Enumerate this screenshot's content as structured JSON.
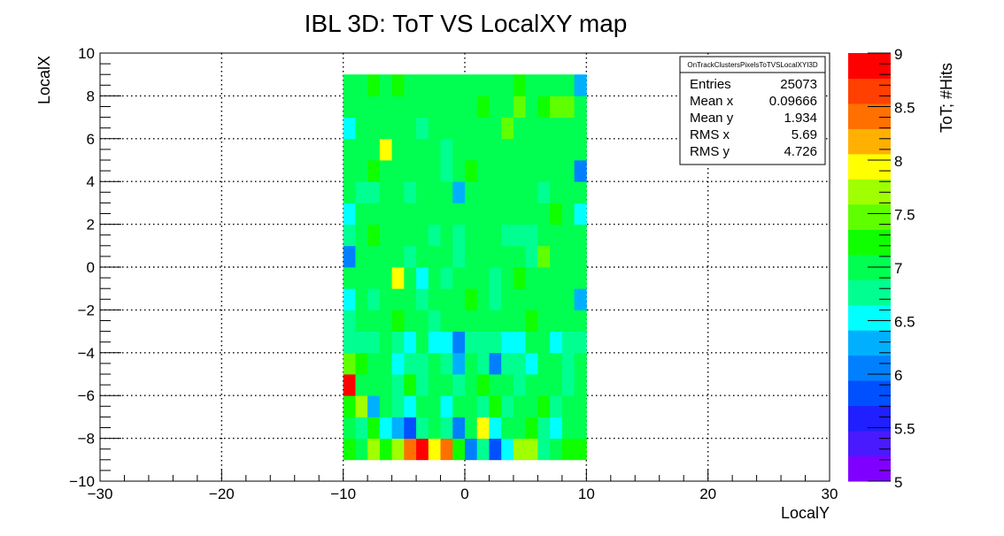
{
  "chart_data": {
    "type": "heatmap",
    "title": "IBL 3D: ToT VS LocalXY map",
    "xlabel": "LocalY",
    "ylabel": "LocalX",
    "xlim": [
      -30,
      30
    ],
    "ylim": [
      -10,
      10
    ],
    "x_ticks": [
      "−30",
      "−20",
      "−10",
      "0",
      "10",
      "20",
      "30"
    ],
    "y_ticks": [
      "−10",
      "−8",
      "−6",
      "−4",
      "−2",
      "0",
      "2",
      "4",
      "6",
      "8",
      "10"
    ],
    "grid": true,
    "x_bin_edges_start": -10,
    "x_bin_width": 1,
    "y_bin_edges_start": -9,
    "y_bin_width": 1,
    "z_range": [
      5,
      9
    ],
    "z_label": "ToT; #Hits",
    "z_ticks": [
      "5",
      "5.5",
      "6",
      "6.5",
      "7",
      "7.5",
      "8",
      "8.5",
      "9"
    ],
    "palette": [
      "#7f00ff",
      "#4a1aff",
      "#1f1fff",
      "#0050ff",
      "#0080ff",
      "#00b0ff",
      "#00ffff",
      "#00ff90",
      "#00ff50",
      "#10ff00",
      "#60ff00",
      "#a0ff00",
      "#ffff00",
      "#ffb000",
      "#ff7000",
      "#ff4000",
      "#ff0000"
    ],
    "values": [
      [
        7.3,
        7.0,
        7.6,
        7.3,
        7.8,
        8.3,
        8.8,
        8.0,
        8.5,
        7.2,
        6.1,
        6.8,
        5.9,
        6.5,
        7.6,
        7.6,
        6.7,
        7.0,
        7.2,
        7.3
      ],
      [
        7.0,
        6.8,
        7.2,
        6.6,
        6.3,
        5.9,
        6.8,
        7.0,
        6.7,
        6.1,
        6.9,
        8.0,
        6.6,
        6.9,
        7.0,
        7.2,
        6.7,
        6.6,
        6.9,
        7.1
      ],
      [
        7.3,
        7.6,
        6.2,
        7.1,
        6.8,
        6.5,
        6.9,
        7.0,
        6.6,
        7.0,
        6.9,
        6.8,
        7.2,
        6.7,
        7.0,
        7.1,
        7.3,
        6.8,
        7.0,
        7.0
      ],
      [
        8.9,
        7.1,
        6.9,
        7.0,
        6.7,
        7.2,
        6.8,
        6.9,
        7.0,
        6.8,
        7.0,
        7.3,
        6.9,
        7.0,
        6.8,
        7.1,
        6.9,
        7.0,
        6.8,
        6.9
      ],
      [
        7.4,
        7.2,
        7.0,
        6.9,
        6.6,
        6.7,
        6.8,
        6.9,
        6.7,
        6.3,
        6.9,
        6.8,
        6.0,
        6.7,
        6.8,
        6.5,
        6.9,
        7.0,
        6.8,
        6.9
      ],
      [
        6.7,
        6.8,
        6.7,
        6.9,
        6.7,
        6.6,
        6.9,
        6.5,
        6.5,
        6.1,
        6.7,
        6.8,
        6.7,
        6.6,
        6.6,
        6.9,
        7.0,
        6.6,
        6.7,
        6.8
      ],
      [
        6.8,
        7.0,
        6.9,
        7.0,
        7.2,
        7.0,
        7.1,
        6.8,
        6.9,
        7.0,
        7.1,
        7.0,
        6.9,
        7.0,
        7.1,
        7.2,
        6.9,
        7.0,
        7.0,
        6.9
      ],
      [
        6.6,
        7.0,
        6.8,
        7.0,
        6.9,
        7.1,
        6.8,
        6.9,
        7.0,
        6.9,
        7.2,
        7.0,
        6.8,
        7.0,
        6.9,
        7.0,
        7.1,
        6.9,
        7.0,
        6.2
      ],
      [
        6.9,
        7.0,
        7.1,
        7.0,
        8.0,
        6.9,
        6.6,
        7.0,
        6.8,
        6.9,
        7.0,
        7.1,
        6.8,
        6.9,
        7.2,
        7.0,
        7.1,
        6.9,
        7.0,
        7.0
      ],
      [
        6.1,
        7.0,
        6.9,
        7.1,
        7.0,
        6.8,
        6.9,
        7.0,
        6.9,
        6.8,
        6.9,
        7.0,
        7.1,
        6.9,
        7.0,
        6.8,
        7.4,
        6.9,
        7.0,
        7.0
      ],
      [
        6.7,
        7.0,
        7.2,
        7.0,
        7.1,
        6.9,
        7.0,
        6.8,
        6.9,
        6.8,
        7.0,
        7.1,
        6.9,
        6.8,
        6.7,
        6.8,
        7.0,
        6.9,
        7.1,
        7.0
      ],
      [
        6.6,
        7.0,
        6.9,
        7.1,
        7.0,
        6.9,
        7.0,
        7.1,
        6.9,
        7.0,
        7.1,
        7.0,
        6.9,
        7.0,
        7.1,
        6.9,
        7.0,
        7.2,
        7.0,
        6.5
      ],
      [
        7.0,
        6.8,
        6.7,
        6.9,
        7.0,
        6.8,
        6.9,
        7.0,
        7.1,
        6.4,
        6.9,
        7.0,
        6.9,
        7.0,
        6.9,
        7.0,
        6.8,
        7.0,
        6.9,
        6.9
      ],
      [
        7.0,
        7.1,
        7.2,
        6.9,
        7.0,
        6.9,
        7.1,
        7.0,
        6.8,
        7.0,
        7.2,
        7.1,
        6.9,
        7.0,
        7.0,
        7.1,
        7.0,
        6.9,
        7.0,
        6.1
      ],
      [
        6.9,
        7.0,
        7.1,
        7.9,
        7.0,
        7.1,
        6.9,
        7.0,
        6.8,
        6.9,
        7.0,
        7.1,
        6.9,
        7.0,
        7.1,
        7.0,
        6.9,
        7.0,
        7.1,
        6.9
      ],
      [
        6.5,
        7.0,
        7.1,
        7.0,
        6.9,
        7.0,
        6.8,
        7.0,
        6.9,
        7.1,
        7.0,
        6.9,
        7.1,
        7.5,
        7.0,
        6.9,
        7.0,
        7.1,
        7.0,
        7.0
      ],
      [
        7.0,
        7.1,
        7.0,
        6.9,
        7.1,
        7.0,
        7.1,
        7.0,
        6.9,
        7.1,
        7.0,
        7.2,
        7.0,
        7.1,
        7.4,
        7.0,
        7.2,
        7.5,
        7.4,
        7.0
      ],
      [
        7.1,
        7.0,
        7.2,
        7.1,
        7.3,
        6.9,
        7.0,
        7.1,
        7.0,
        7.1,
        6.9,
        7.0,
        7.1,
        7.0,
        7.2,
        7.0,
        7.1,
        7.0,
        7.1,
        6.4
      ]
    ],
    "stats": {
      "name": "OnTrackClustersPixelsToTVSLocalXYI3D",
      "rows": [
        {
          "label": "Entries",
          "value": "25073"
        },
        {
          "label": "Mean x",
          "value": "0.09666"
        },
        {
          "label": "Mean y",
          "value": "1.934"
        },
        {
          "label": "RMS x",
          "value": "5.69"
        },
        {
          "label": "RMS y",
          "value": "4.726"
        }
      ]
    }
  }
}
